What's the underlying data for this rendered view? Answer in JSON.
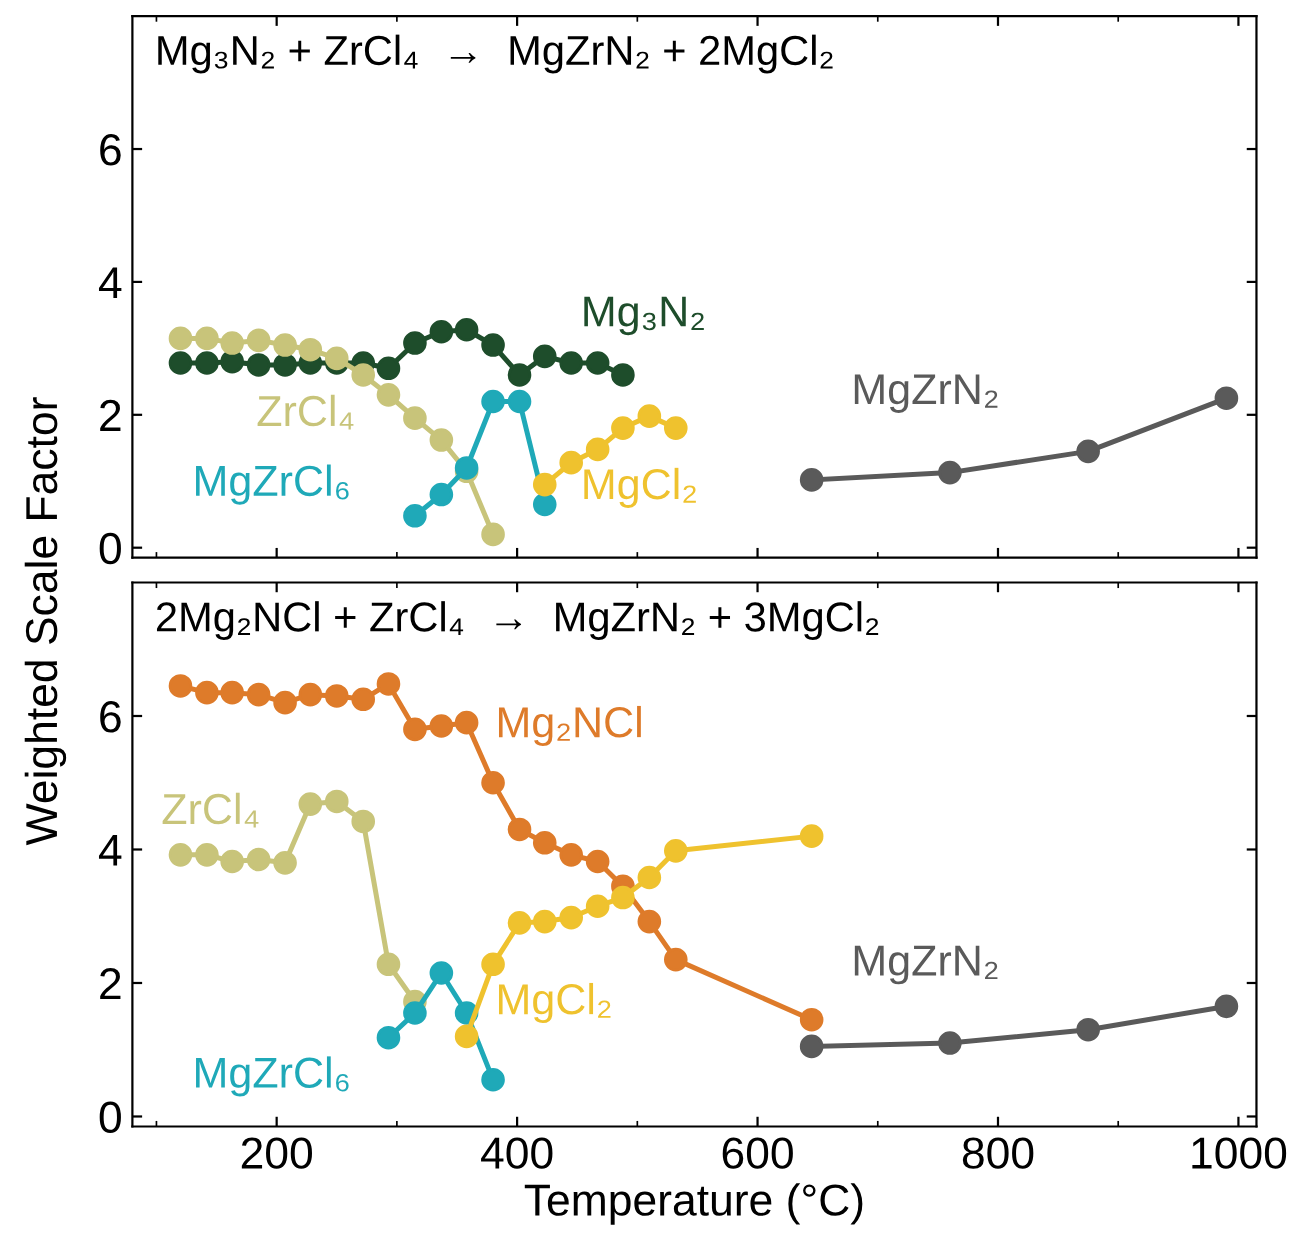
{
  "chart_data": [
    {
      "type": "line",
      "title": "Mg₃N₂ + ZrCl₄  →  MgZrN₂ + 2MgCl₂",
      "ylabel": "Weighted Scale Factor",
      "xlim": [
        80,
        1015
      ],
      "ylim": [
        -0.15,
        8
      ],
      "xticks": [
        200,
        400,
        600,
        800,
        1000
      ],
      "yticks": [
        0,
        2,
        4,
        6
      ],
      "tick_labels": "y",
      "marker": "circle",
      "line_style": "solid",
      "grid": false,
      "legend": false,
      "series": [
        {
          "name": "Mg₃N₂",
          "color": "#1e4d2b",
          "x": [
            120,
            142,
            163,
            185,
            207,
            228,
            250,
            272,
            293,
            315,
            337,
            358,
            380,
            402,
            423,
            445,
            467,
            488
          ],
          "values": [
            2.78,
            2.78,
            2.8,
            2.75,
            2.75,
            2.78,
            2.78,
            2.78,
            2.7,
            3.08,
            3.25,
            3.28,
            3.05,
            2.6,
            2.88,
            2.78,
            2.78,
            2.6
          ]
        },
        {
          "name": "ZrCl₄",
          "color": "#c8c47a",
          "x": [
            120,
            142,
            163,
            185,
            207,
            228,
            250,
            272,
            293,
            315,
            337,
            358,
            380
          ],
          "values": [
            3.15,
            3.15,
            3.08,
            3.12,
            3.05,
            2.98,
            2.85,
            2.6,
            2.3,
            1.95,
            1.62,
            1.15,
            0.2
          ]
        },
        {
          "name": "MgZrCl₆",
          "color": "#1fa9b8",
          "x": [
            315,
            337,
            358,
            380,
            402,
            423
          ],
          "values": [
            0.48,
            0.8,
            1.2,
            2.2,
            2.2,
            0.65
          ]
        },
        {
          "name": "MgCl₂",
          "color": "#efc22e",
          "x": [
            423,
            445,
            467,
            488,
            510,
            532
          ],
          "values": [
            0.95,
            1.28,
            1.48,
            1.8,
            1.98,
            1.8
          ]
        },
        {
          "name": "MgZrN₂",
          "color": "#5a5a5a",
          "x": [
            645,
            760,
            875,
            990
          ],
          "values": [
            1.02,
            1.13,
            1.45,
            2.25
          ]
        }
      ]
    },
    {
      "type": "line",
      "title": "2Mg₂NCl + ZrCl₄  →  MgZrN₂ + 3MgCl₂",
      "xlabel": "Temperature (°C)",
      "xlim": [
        80,
        1015
      ],
      "ylim": [
        -0.15,
        8
      ],
      "xticks": [
        200,
        400,
        600,
        800,
        1000
      ],
      "yticks": [
        0,
        2,
        4,
        6
      ],
      "marker": "circle",
      "line_style": "solid",
      "grid": false,
      "legend": false,
      "series": [
        {
          "name": "Mg₂NCl",
          "color": "#de7b2a",
          "x": [
            120,
            142,
            163,
            185,
            207,
            228,
            250,
            272,
            293,
            315,
            337,
            358,
            380,
            402,
            423,
            445,
            467,
            488,
            510,
            532,
            645
          ],
          "values": [
            6.45,
            6.35,
            6.35,
            6.32,
            6.2,
            6.32,
            6.3,
            6.25,
            6.48,
            5.8,
            5.85,
            5.9,
            5.0,
            4.3,
            4.1,
            3.92,
            3.82,
            3.45,
            2.92,
            2.35,
            1.45
          ]
        },
        {
          "name": "ZrCl₄",
          "color": "#c8c47a",
          "x": [
            120,
            142,
            163,
            185,
            207,
            228,
            250,
            272,
            293,
            315
          ],
          "values": [
            3.92,
            3.92,
            3.82,
            3.85,
            3.8,
            4.68,
            4.72,
            4.42,
            2.28,
            1.72
          ]
        },
        {
          "name": "MgZrCl₆",
          "color": "#1fa9b8",
          "x": [
            293,
            315,
            337,
            358,
            380
          ],
          "values": [
            1.18,
            1.55,
            2.15,
            1.55,
            0.55
          ]
        },
        {
          "name": "MgCl₂",
          "color": "#efc22e",
          "x": [
            358,
            380,
            402,
            423,
            445,
            467,
            488,
            510,
            532,
            645
          ],
          "values": [
            1.2,
            2.28,
            2.9,
            2.92,
            2.98,
            3.15,
            3.28,
            3.58,
            3.98,
            4.2
          ]
        },
        {
          "name": "MgZrN₂",
          "color": "#5a5a5a",
          "x": [
            645,
            760,
            875,
            990
          ],
          "values": [
            1.05,
            1.1,
            1.3,
            1.65
          ]
        }
      ]
    }
  ]
}
